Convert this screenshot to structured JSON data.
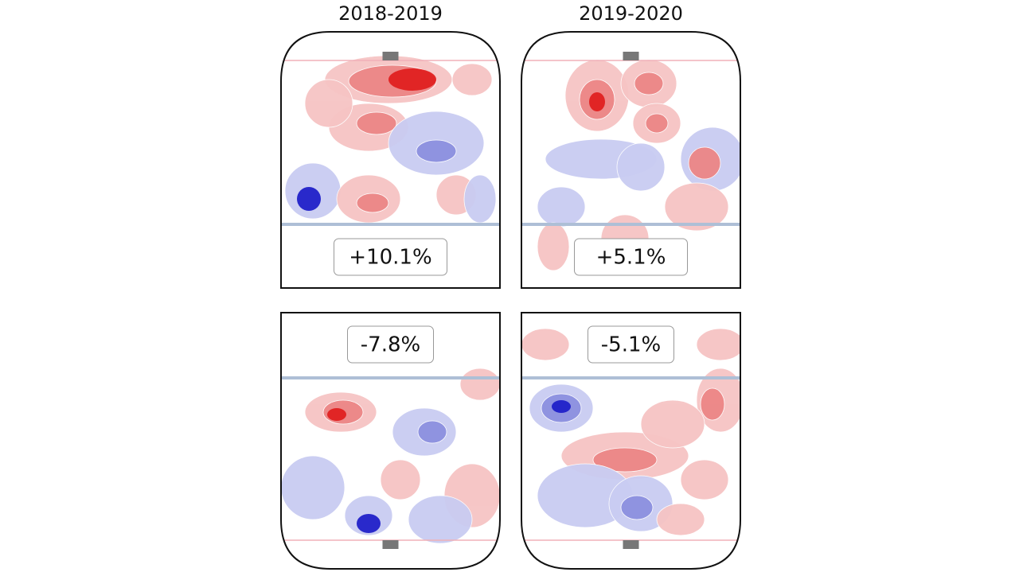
{
  "columns": [
    {
      "title": "2018-2019",
      "panels": [
        {
          "label": "+10.1%"
        },
        {
          "label": "-7.8%"
        }
      ]
    },
    {
      "title": "2019-2020",
      "panels": [
        {
          "label": "+5.1%"
        },
        {
          "label": "-5.1%"
        }
      ]
    }
  ]
}
